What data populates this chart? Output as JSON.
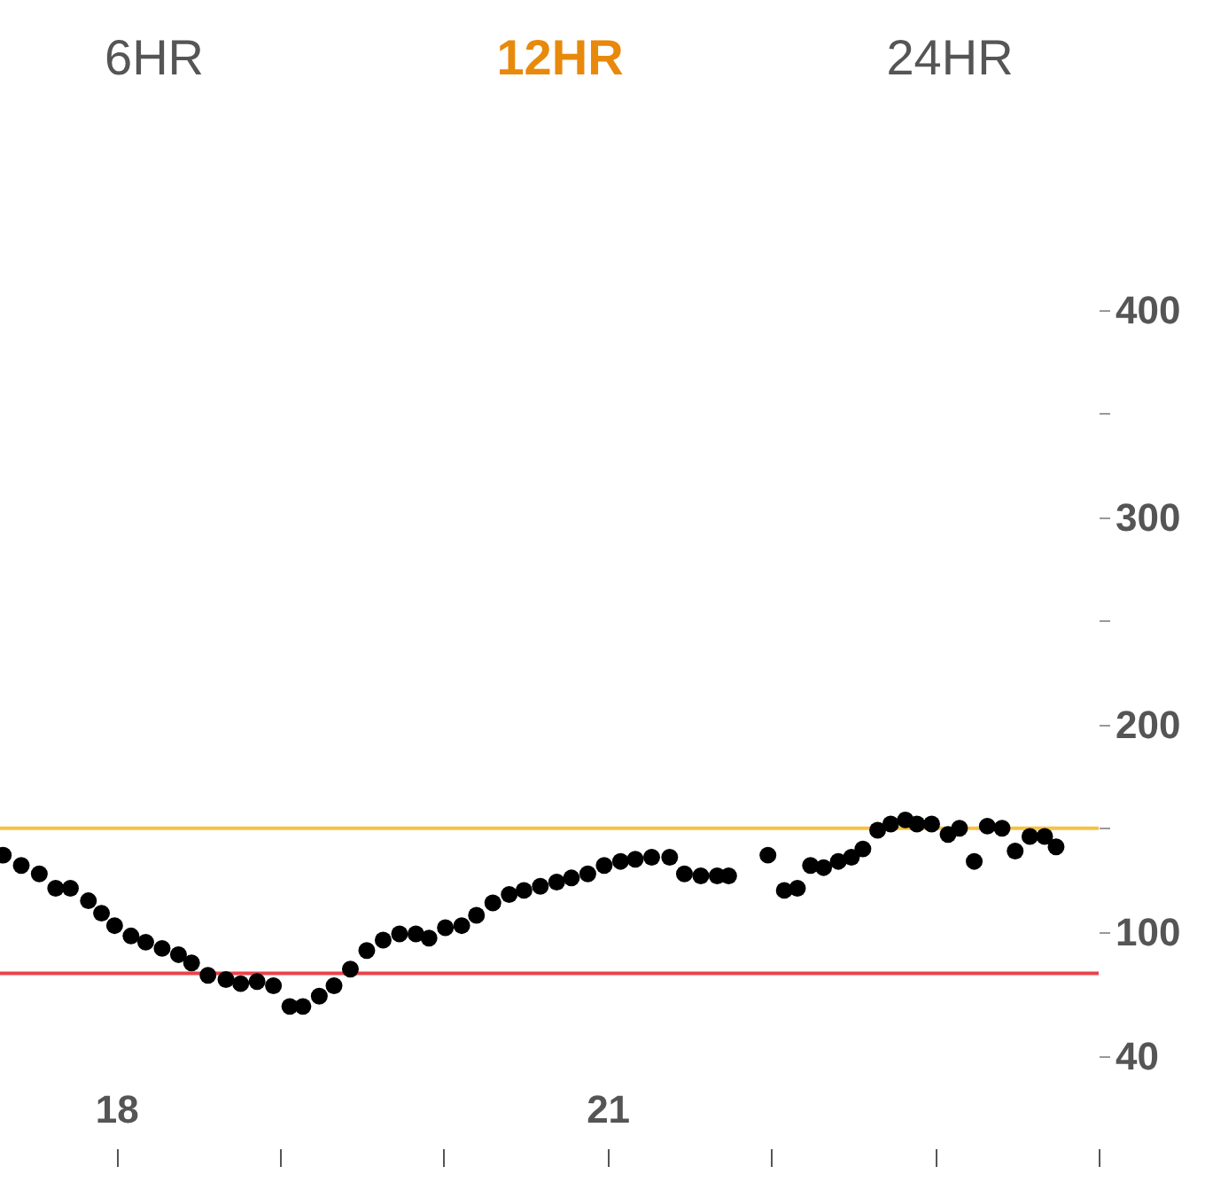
{
  "chart_data": {
    "type": "scatter",
    "annotations": [
      "6HR",
      "12HR",
      "24HR"
    ],
    "x": [
      17.31,
      17.42,
      17.53,
      17.63,
      17.72,
      17.83,
      17.91,
      17.99,
      18.09,
      18.18,
      18.28,
      18.38,
      18.46,
      18.56,
      18.67,
      18.76,
      18.86,
      18.96,
      19.06,
      19.14,
      19.24,
      19.33,
      19.43,
      19.53,
      19.63,
      19.73,
      19.83,
      19.91,
      20.01,
      20.11,
      20.2,
      20.3,
      20.4,
      20.49,
      20.59,
      20.69,
      20.78,
      20.88,
      20.98,
      21.08,
      21.17,
      21.27,
      21.38,
      21.47,
      21.57,
      21.67,
      21.74,
      21.98,
      22.08,
      22.16,
      22.24,
      22.32,
      22.41,
      22.49,
      22.56,
      22.65,
      22.73,
      22.82,
      22.89,
      22.98,
      23.08,
      23.15,
      23.24,
      23.32,
      23.41,
      23.49,
      23.58,
      23.67,
      23.74
    ],
    "series": [
      {
        "color": "#000000",
        "values": [
          137,
          132,
          128,
          121,
          121,
          115,
          109,
          103,
          98,
          95,
          92,
          89,
          85,
          79,
          77,
          75,
          76,
          74,
          64,
          64,
          69,
          74,
          82,
          91,
          96,
          99,
          99,
          97,
          102,
          103,
          108,
          114,
          118,
          120,
          122,
          124,
          126,
          128,
          132,
          134,
          135,
          136,
          136,
          128,
          127,
          127,
          127,
          137,
          120,
          121,
          132,
          131,
          134,
          136,
          140,
          149,
          152,
          154,
          152,
          152,
          147,
          150,
          134,
          151,
          150,
          139,
          146,
          146,
          141
        ]
      }
    ],
    "xlim": [
      17.29,
      24
    ],
    "xticks": [
      18,
      {
        "value": 19,
        "label": null
      },
      {
        "value": 20,
        "label": null
      },
      21,
      {
        "value": 22,
        "label": null
      },
      {
        "value": 23,
        "label": null
      },
      {
        "value": 24,
        "label": null
      }
    ],
    "ylim": [
      40,
      400
    ],
    "yticks": [
      40,
      100,
      {
        "value": 150,
        "label": null
      },
      200,
      {
        "value": 250,
        "label": null
      },
      300,
      {
        "value": 350,
        "label": null
      },
      400
    ],
    "ref_lines": [
      {
        "axis": "y",
        "value": 150,
        "color": "#f5c242"
      },
      {
        "axis": "y",
        "value": 80,
        "color": "#e8434a"
      }
    ],
    "marker": "circle",
    "grid": false
  }
}
